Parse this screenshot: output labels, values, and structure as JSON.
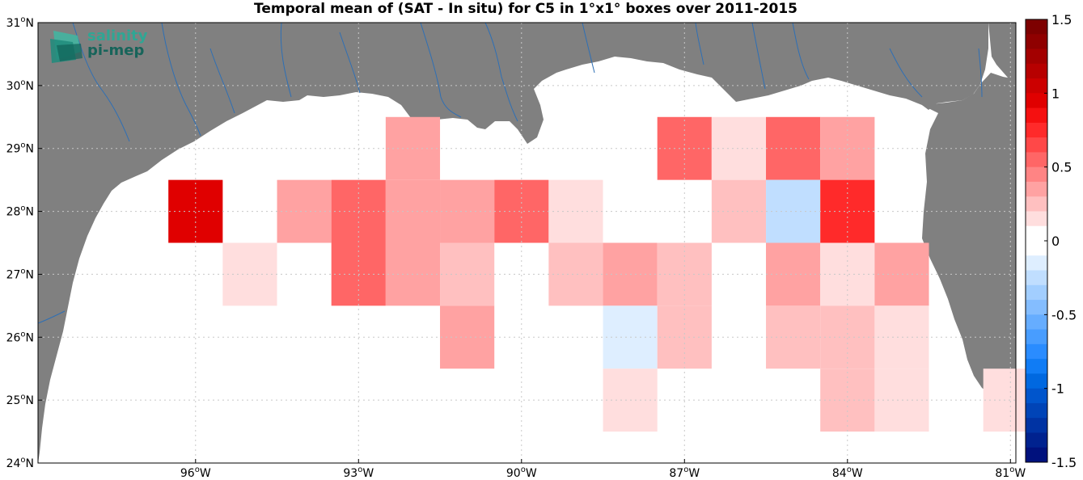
{
  "title": "Temporal mean of (SAT - In situ) for C5 in 1°x1° boxes over 2011-2015",
  "logo": {
    "line1": "salinity",
    "line2": "pi-mep"
  },
  "lat_labels": [
    {
      "deg": "24",
      "lat": 24
    },
    {
      "deg": "25",
      "lat": 25
    },
    {
      "deg": "26",
      "lat": 26
    },
    {
      "deg": "27",
      "lat": 27
    },
    {
      "deg": "28",
      "lat": 28
    },
    {
      "deg": "29",
      "lat": 29
    },
    {
      "deg": "30",
      "lat": 30
    },
    {
      "deg": "31",
      "lat": 31
    }
  ],
  "lon_labels": [
    {
      "deg": "96",
      "lon": -96
    },
    {
      "deg": "93",
      "lon": -93
    },
    {
      "deg": "90",
      "lon": -90
    },
    {
      "deg": "87",
      "lon": -87
    },
    {
      "deg": "84",
      "lon": -84
    },
    {
      "deg": "81",
      "lon": -81
    }
  ],
  "colorbar": {
    "min": -1.5,
    "max": 1.5,
    "ticks": [
      {
        "label": "1.5",
        "value": 1.5
      },
      {
        "label": "1",
        "value": 1
      },
      {
        "label": "0.5",
        "value": 0.5
      },
      {
        "label": "0",
        "value": 0
      },
      {
        "label": "-0.5",
        "value": -0.5
      },
      {
        "label": "-1",
        "value": -1
      },
      {
        "label": "-1.5",
        "value": -1.5
      }
    ],
    "colors_top_to_bottom": [
      "#7d0000",
      "#8f0000",
      "#a30000",
      "#b70000",
      "#cc0000",
      "#e00000",
      "#f51010",
      "#ff2a2a",
      "#ff4848",
      "#ff6666",
      "#ff8484",
      "#ffa2a2",
      "#ffc0c0",
      "#ffdede",
      "#ffffff",
      "#ffffff",
      "#deeeff",
      "#c0deff",
      "#a2ceff",
      "#84bdff",
      "#66adff",
      "#489dff",
      "#2a8cff",
      "#107cf5",
      "#0068e0",
      "#0055cc",
      "#0044b7",
      "#0033a3",
      "#00228f",
      "#00117d"
    ]
  },
  "colors": {
    "land": "#808080",
    "ocean": "#ffffff",
    "rivers": "#2e6fb5",
    "grid": "#c8c8c8"
  },
  "chart_data": {
    "type": "heatmap",
    "title": "Temporal mean of (SAT - In situ) for C5 in 1°x1° boxes over 2011-2015",
    "cell_size_deg": 1,
    "value_range": [
      -1.5,
      1.5
    ],
    "cells": [
      {
        "lon": -96,
        "lat": 28,
        "value": 1.0
      },
      {
        "lon": -95,
        "lat": 27,
        "value": 0.15
      },
      {
        "lon": -94,
        "lat": 28,
        "value": 0.4
      },
      {
        "lon": -93,
        "lat": 28,
        "value": 0.6
      },
      {
        "lon": -93,
        "lat": 27,
        "value": 0.6
      },
      {
        "lon": -92,
        "lat": 29,
        "value": 0.4
      },
      {
        "lon": -92,
        "lat": 28,
        "value": 0.4
      },
      {
        "lon": -92,
        "lat": 27,
        "value": 0.4
      },
      {
        "lon": -91,
        "lat": 28,
        "value": 0.4
      },
      {
        "lon": -91,
        "lat": 27,
        "value": 0.25
      },
      {
        "lon": -91,
        "lat": 26,
        "value": 0.4
      },
      {
        "lon": -90,
        "lat": 28,
        "value": 0.6
      },
      {
        "lon": -89,
        "lat": 28,
        "value": 0.15
      },
      {
        "lon": -89,
        "lat": 27,
        "value": 0.25
      },
      {
        "lon": -88,
        "lat": 27,
        "value": 0.4
      },
      {
        "lon": -88,
        "lat": 26,
        "value": -0.15
      },
      {
        "lon": -88,
        "lat": 25,
        "value": 0.15
      },
      {
        "lon": -87,
        "lat": 29,
        "value": 0.6
      },
      {
        "lon": -87,
        "lat": 27,
        "value": 0.25
      },
      {
        "lon": -87,
        "lat": 26,
        "value": 0.25
      },
      {
        "lon": -86,
        "lat": 29,
        "value": 0.15
      },
      {
        "lon": -86,
        "lat": 28,
        "value": 0.25
      },
      {
        "lon": -85,
        "lat": 29,
        "value": 0.6
      },
      {
        "lon": -85,
        "lat": 28,
        "value": -0.25
      },
      {
        "lon": -85,
        "lat": 27,
        "value": 0.4
      },
      {
        "lon": -85,
        "lat": 26,
        "value": 0.25
      },
      {
        "lon": -84,
        "lat": 29,
        "value": 0.4
      },
      {
        "lon": -84,
        "lat": 28,
        "value": 0.75
      },
      {
        "lon": -84,
        "lat": 27,
        "value": 0.15
      },
      {
        "lon": -84,
        "lat": 26,
        "value": 0.25
      },
      {
        "lon": -84,
        "lat": 25,
        "value": 0.25
      },
      {
        "lon": -83,
        "lat": 27,
        "value": 0.4
      },
      {
        "lon": -83,
        "lat": 26,
        "value": 0.15
      },
      {
        "lon": -83,
        "lat": 25,
        "value": 0.15
      },
      {
        "lon": -81,
        "lat": 25,
        "value": 0.15
      }
    ]
  }
}
